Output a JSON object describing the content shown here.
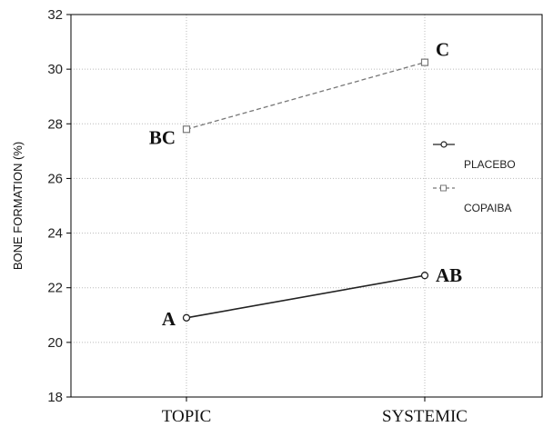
{
  "chart_data": {
    "type": "line",
    "title": "",
    "xlabel": "",
    "ylabel": "BONE FORMATION (%)",
    "categories": [
      "TOPIC",
      "SYSTEMIC"
    ],
    "ylim": [
      18,
      32
    ],
    "yticks": [
      18,
      20,
      22,
      24,
      26,
      28,
      30,
      32
    ],
    "grid": true,
    "legend_position": "right",
    "series": [
      {
        "name": "PLACEBO",
        "values": [
          20.9,
          22.45
        ],
        "labels": [
          "A",
          "AB"
        ],
        "color": "#222222",
        "dash": "solid"
      },
      {
        "name": "COPAIBA",
        "values": [
          27.8,
          30.25
        ],
        "labels": [
          "BC",
          "C"
        ],
        "color": "#777777",
        "dash": "dashed"
      }
    ]
  }
}
